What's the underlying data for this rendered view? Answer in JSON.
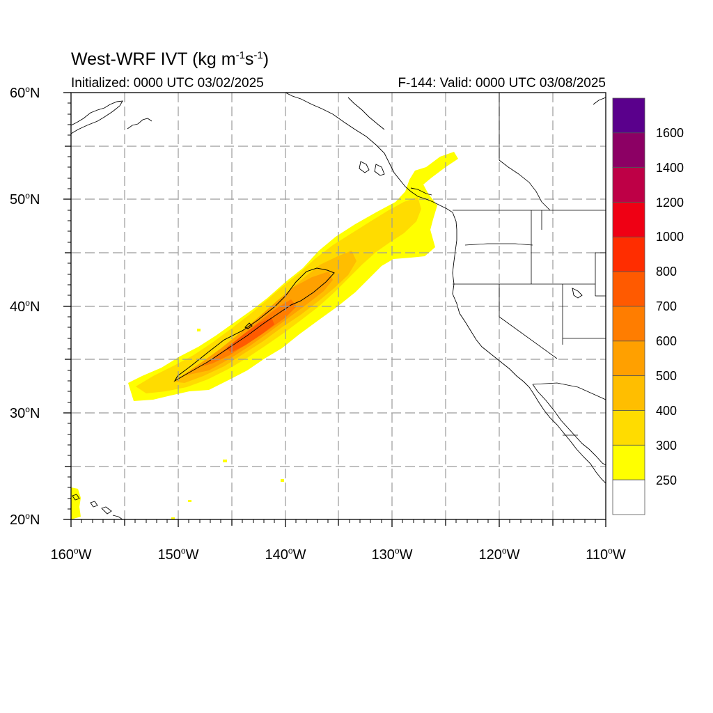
{
  "title": {
    "prefix": "West-WRF IVT (kg m",
    "exp1": "-1",
    "mid": "s",
    "exp2": "-1",
    "suffix": ")"
  },
  "initialized": "Initialized: 0000 UTC 03/02/2025",
  "valid": "F-144: Valid: 0000 UTC 03/08/2025",
  "degree_mark": "o",
  "lat_labels": [
    {
      "value": "60",
      "hemi": "N"
    },
    {
      "value": "50",
      "hemi": "N"
    },
    {
      "value": "40",
      "hemi": "N"
    },
    {
      "value": "30",
      "hemi": "N"
    },
    {
      "value": "20",
      "hemi": "N"
    }
  ],
  "lon_labels": [
    {
      "value": "160",
      "hemi": "W"
    },
    {
      "value": "150",
      "hemi": "W"
    },
    {
      "value": "140",
      "hemi": "W"
    },
    {
      "value": "130",
      "hemi": "W"
    },
    {
      "value": "120",
      "hemi": "W"
    },
    {
      "value": "110",
      "hemi": "W"
    }
  ],
  "map_extent": {
    "lon": [
      -160,
      -110
    ],
    "lat": [
      20,
      60
    ]
  },
  "colorbar": {
    "labels": [
      "1600",
      "1400",
      "1200",
      "1000",
      "800",
      "700",
      "600",
      "500",
      "400",
      "300",
      "250"
    ],
    "colors_top_to_bottom": [
      "#5a008c",
      "#8c0064",
      "#be0046",
      "#ef0014",
      "#ff2d00",
      "#ff5a00",
      "#ff7d00",
      "#ffa000",
      "#ffbe00",
      "#ffdc00",
      "#ffff00",
      "#ffffff"
    ]
  },
  "ivt_colors": {
    "250": "#ffff00",
    "300": "#ffdc00",
    "400": "#ffbe00",
    "500": "#ffa000",
    "600": "#ff7d00",
    "700": "#ff5a00"
  }
}
